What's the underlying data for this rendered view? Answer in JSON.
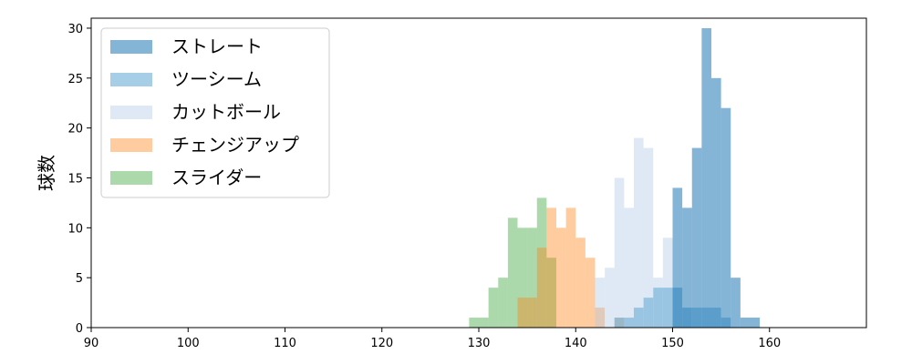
{
  "chart_data": {
    "type": "histogram",
    "ylabel": "球数",
    "xlim": [
      90,
      170
    ],
    "ylim": [
      0,
      31
    ],
    "x_ticks": [
      90,
      100,
      110,
      120,
      130,
      140,
      150,
      160
    ],
    "y_ticks": [
      0,
      5,
      10,
      15,
      20,
      25,
      30
    ],
    "grid": false,
    "legend_position": "top-left",
    "series": [
      {
        "name": "スライダー",
        "color": "#2ca02c",
        "opacity": 0.4,
        "bin_start": 129,
        "bin_width": 1,
        "counts": [
          1,
          1,
          4,
          5,
          11,
          10,
          10,
          13,
          7
        ]
      },
      {
        "name": "チェンジアップ",
        "color": "#ff7f0e",
        "opacity": 0.4,
        "bin_start": 134,
        "bin_width": 1,
        "counts": [
          3,
          3,
          8,
          12,
          10,
          12,
          9,
          7,
          2,
          0,
          1
        ]
      },
      {
        "name": "カットボール",
        "color": "#aec7e8",
        "opacity": 0.4,
        "bin_start": 142,
        "bin_width": 1,
        "counts": [
          5,
          6,
          15,
          12,
          19,
          18,
          5,
          9,
          4,
          2
        ]
      },
      {
        "name": "ツーシーム",
        "color": "#6baed6",
        "opacity": 0.6,
        "bin_start": 144,
        "bin_width": 1,
        "counts": [
          1,
          1,
          2,
          3,
          4,
          4,
          4,
          2,
          2,
          2,
          2,
          1
        ]
      },
      {
        "name": "ストレート",
        "color": "#1f77b4",
        "opacity": 0.55,
        "bin_start": 150,
        "bin_width": 1,
        "counts": [
          14,
          12,
          18,
          30,
          25,
          22,
          5,
          1,
          1
        ]
      }
    ],
    "legend_order": [
      "ストレート",
      "ツーシーム",
      "カットボール",
      "チェンジアップ",
      "スライダー"
    ]
  }
}
